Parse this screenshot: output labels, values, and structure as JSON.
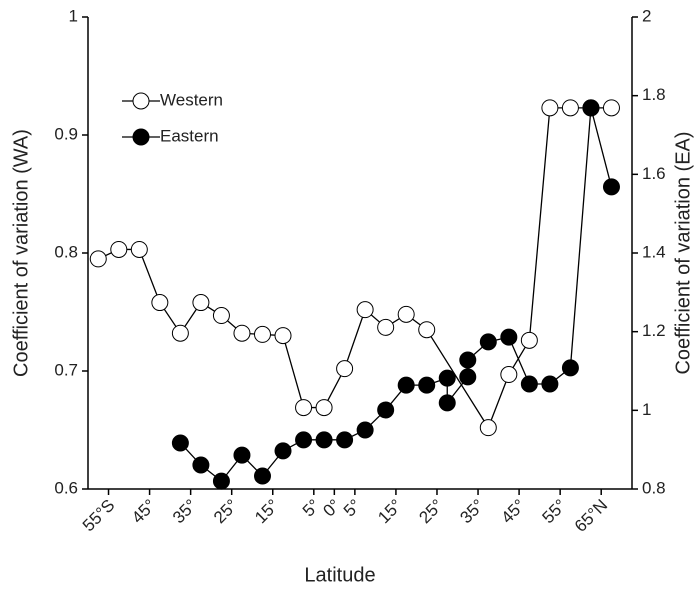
{
  "chart_data": {
    "type": "line",
    "xlabel": "Latitude",
    "ylabel": "Coefficient of variation (WA)",
    "y2label": "Coefficient of variation (EA)",
    "xlim": [
      -60,
      72.5
    ],
    "xticks": [
      {
        "value": -55,
        "label": "55°S"
      },
      {
        "value": -45,
        "label": "45°"
      },
      {
        "value": -35,
        "label": "35°"
      },
      {
        "value": -25,
        "label": "25°"
      },
      {
        "value": -15,
        "label": "15°"
      },
      {
        "value": -5,
        "label": "5°"
      },
      {
        "value": 0,
        "label": "0°"
      },
      {
        "value": 5,
        "label": "5°"
      },
      {
        "value": 15,
        "label": "15°"
      },
      {
        "value": 25,
        "label": "25°"
      },
      {
        "value": 35,
        "label": "35°"
      },
      {
        "value": 45,
        "label": "45°"
      },
      {
        "value": 55,
        "label": "55°"
      },
      {
        "value": 65,
        "label": "65°N"
      }
    ],
    "ylim": [
      0.6,
      1
    ],
    "yticks": [
      0.6,
      0.7,
      0.8,
      0.9,
      1
    ],
    "y2lim": [
      0.8,
      2
    ],
    "y2ticks": [
      0.8,
      1,
      1.2,
      1.4,
      1.6,
      1.8,
      2
    ],
    "legend": "upper left",
    "series": [
      {
        "name": "Western",
        "color": "#000000",
        "marker_fill": "#ffffff",
        "x": [
          -57.5,
          -52.5,
          -47.5,
          -42.5,
          -37.5,
          -32.5,
          -27.5,
          -22.5,
          -17.5,
          -12.5,
          -7.5,
          -2.5,
          2.5,
          7.5,
          12.5,
          17.5,
          22.5,
          37.5,
          42.5,
          47.5,
          52.5,
          57.5,
          62.5,
          67.5
        ],
        "values": [
          0.795,
          0.803,
          0.803,
          0.758,
          0.732,
          0.758,
          0.747,
          0.732,
          0.731,
          0.73,
          0.669,
          0.669,
          0.702,
          0.752,
          0.737,
          0.748,
          0.735,
          0.652,
          0.697,
          0.726,
          0.923,
          0.923,
          0.923,
          0.923
        ]
      },
      {
        "name": "Eastern",
        "color": "#000000",
        "marker_fill": "#000000",
        "axis": "y2",
        "x": [
          -37.5,
          -32.5,
          -27.5,
          -22.5,
          -17.5,
          -12.5,
          -7.5,
          -2.5,
          2.5,
          7.5,
          12.5,
          17.5,
          22.5,
          27.5,
          27.5,
          32.5,
          32.5,
          37.5,
          42.5,
          47.5,
          52.5,
          57.5,
          62.5,
          67.5
        ],
        "values": [
          0.917,
          0.861,
          0.82,
          0.886,
          0.833,
          0.897,
          0.925,
          0.925,
          0.925,
          0.95,
          1.001,
          1.064,
          1.064,
          1.082,
          1.019,
          1.085,
          1.128,
          1.174,
          1.186,
          1.067,
          1.067,
          1.108,
          1.769,
          1.568
        ]
      }
    ]
  }
}
